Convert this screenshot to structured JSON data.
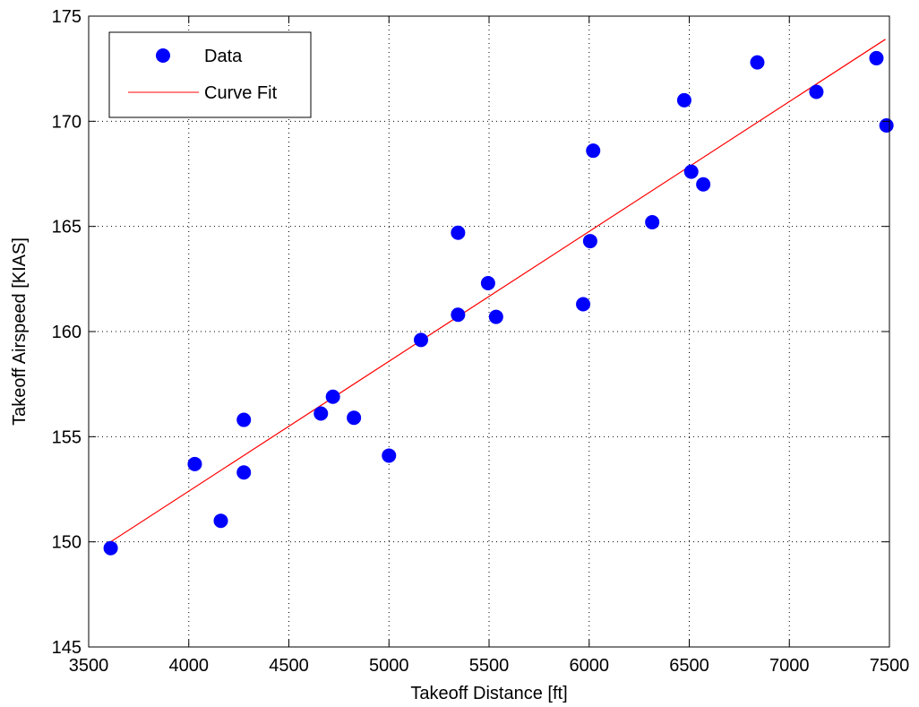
{
  "chart_data": {
    "type": "scatter",
    "xlabel": "Takeoff Distance [ft]",
    "ylabel": "Takeoff Airspeed [KIAS]",
    "xlim": [
      3500,
      7500
    ],
    "ylim": [
      145,
      175
    ],
    "xticks": [
      3500,
      4000,
      4500,
      5000,
      5500,
      6000,
      6500,
      7000,
      7500
    ],
    "yticks": [
      145,
      150,
      155,
      160,
      165,
      170,
      175
    ],
    "grid": true,
    "legend": "top-left",
    "series": [
      {
        "name": "Data",
        "kind": "scatter",
        "color": "#0000ff",
        "points": [
          {
            "x": 3610,
            "y": 149.7
          },
          {
            "x": 4030,
            "y": 153.7
          },
          {
            "x": 4160,
            "y": 151.0
          },
          {
            "x": 4275,
            "y": 155.8
          },
          {
            "x": 4275,
            "y": 153.3
          },
          {
            "x": 4660,
            "y": 156.1
          },
          {
            "x": 4720,
            "y": 156.9
          },
          {
            "x": 4825,
            "y": 155.9
          },
          {
            "x": 5000,
            "y": 154.1
          },
          {
            "x": 5160,
            "y": 159.6
          },
          {
            "x": 5345,
            "y": 164.7
          },
          {
            "x": 5345,
            "y": 160.8
          },
          {
            "x": 5495,
            "y": 162.3
          },
          {
            "x": 5535,
            "y": 160.7
          },
          {
            "x": 5970,
            "y": 161.3
          },
          {
            "x": 6005,
            "y": 164.3
          },
          {
            "x": 6020,
            "y": 168.6
          },
          {
            "x": 6315,
            "y": 165.2
          },
          {
            "x": 6475,
            "y": 171.0
          },
          {
            "x": 6510,
            "y": 167.6
          },
          {
            "x": 6570,
            "y": 167.0
          },
          {
            "x": 6840,
            "y": 172.8
          },
          {
            "x": 7135,
            "y": 171.4
          },
          {
            "x": 7435,
            "y": 173.0
          },
          {
            "x": 7485,
            "y": 169.8
          }
        ]
      },
      {
        "name": "Curve Fit",
        "kind": "line",
        "color": "#ff0000",
        "points": [
          {
            "x": 3610,
            "y": 150.0
          },
          {
            "x": 7480,
            "y": 173.9
          }
        ]
      }
    ]
  }
}
